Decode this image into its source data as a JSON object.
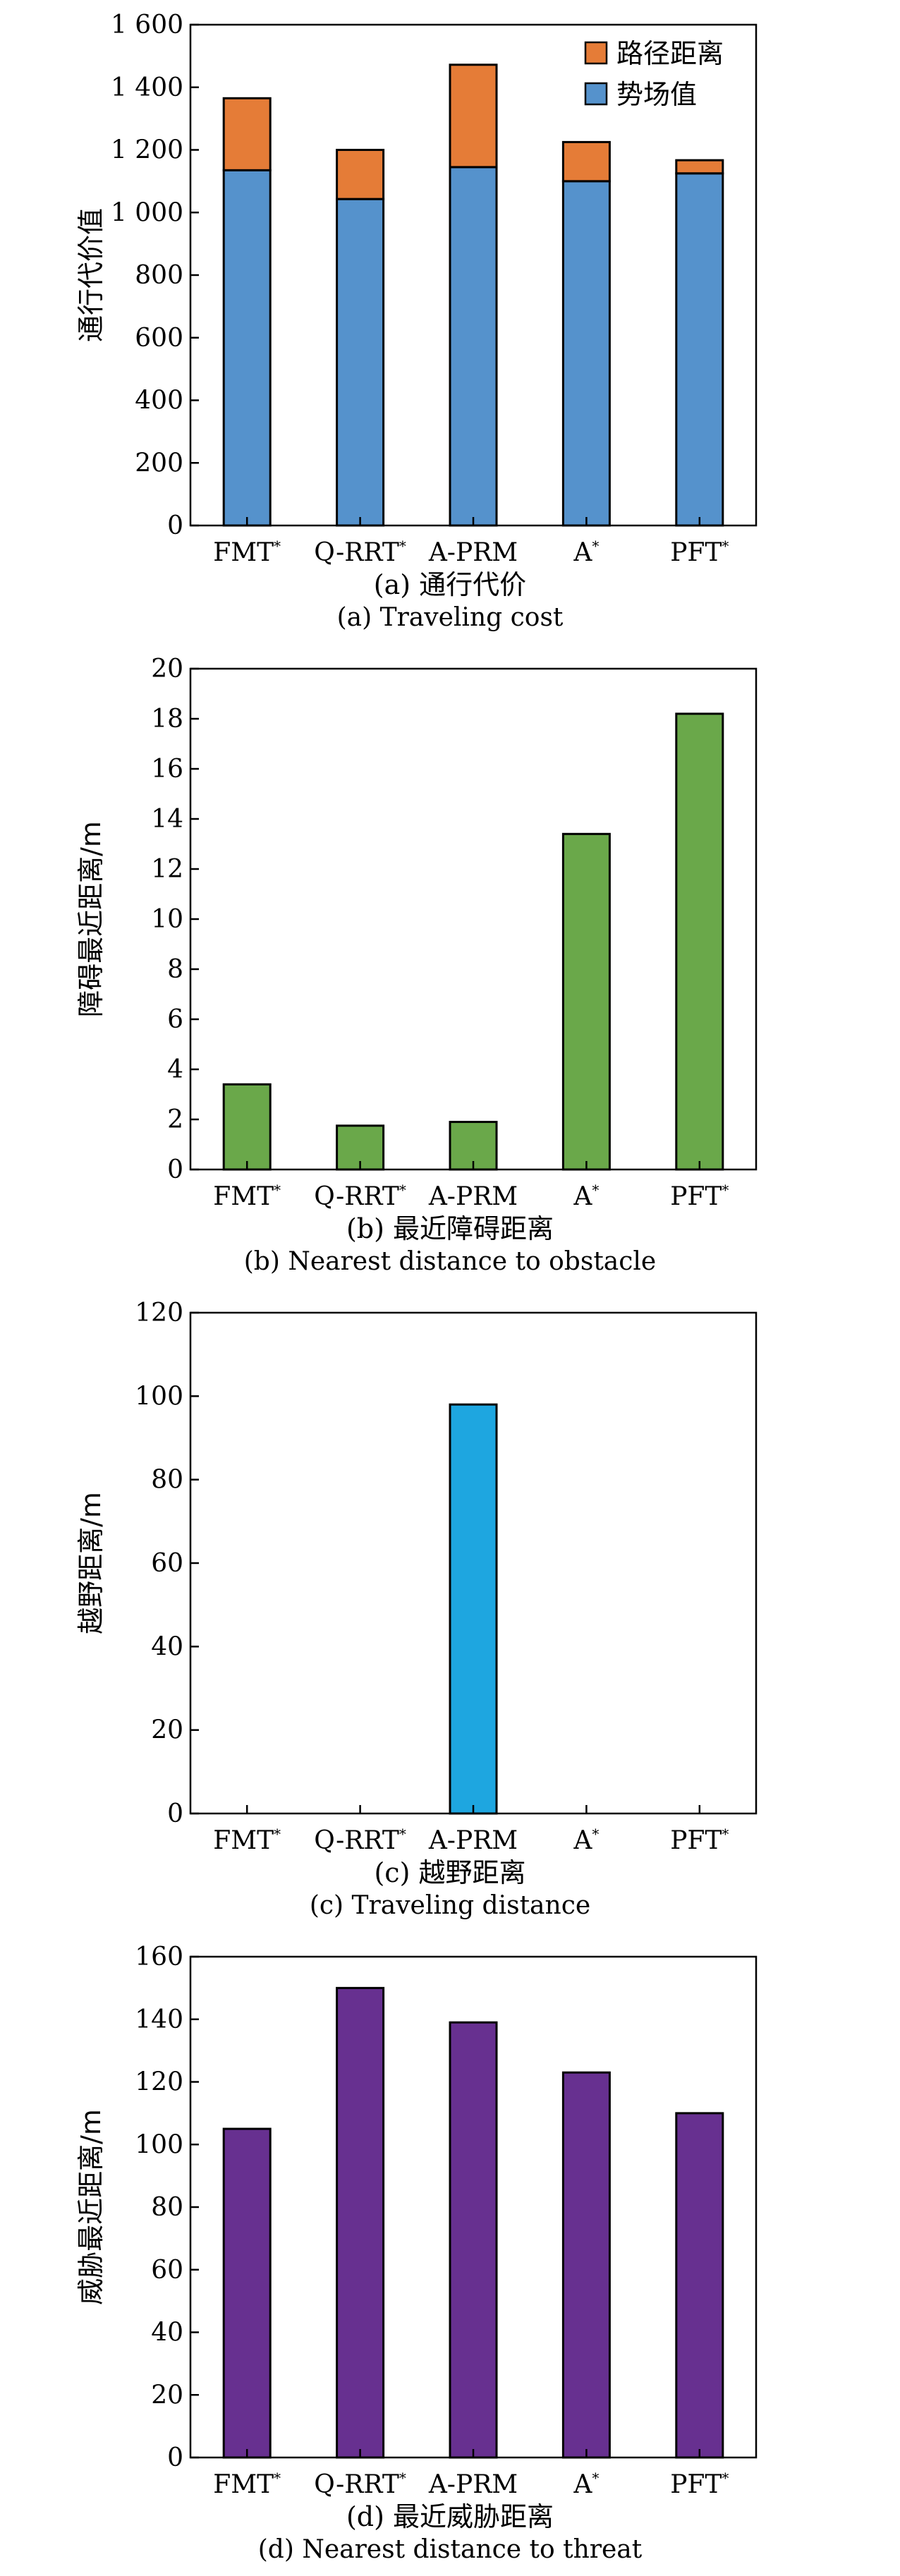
{
  "chart_data": [
    {
      "type": "bar",
      "stacked": true,
      "categories": [
        "FMT*",
        "Q-RRT*",
        "A-PRM",
        "A*",
        "PFT*"
      ],
      "series": [
        {
          "name": "势场值",
          "color": "#5592cc",
          "values": [
            1135,
            1043,
            1145,
            1100,
            1125
          ]
        },
        {
          "name": "路径距离",
          "color": "#e57c37",
          "values": [
            230,
            157,
            327,
            125,
            42
          ]
        }
      ],
      "ylabel": "通行代价值",
      "ylim": [
        0,
        1600
      ],
      "yticks": [
        0,
        200,
        400,
        600,
        800,
        1000,
        1200,
        1400,
        1600
      ],
      "ytick_labels": [
        "0",
        "200",
        "400",
        "600",
        "800",
        "1 000",
        "1 200",
        "1 400",
        "1 600"
      ],
      "legend": "top-right",
      "grid": false,
      "caption_cn": "(a) 通行代价",
      "caption_en": "(a) Traveling cost"
    },
    {
      "type": "bar",
      "categories": [
        "FMT*",
        "Q-RRT*",
        "A-PRM",
        "A*",
        "PFT*"
      ],
      "series": [
        {
          "color": "#6aa84a",
          "values": [
            3.4,
            1.75,
            1.9,
            13.4,
            18.2
          ]
        }
      ],
      "ylabel": "障碍最近距离/m",
      "ylim": [
        0,
        20
      ],
      "yticks": [
        0,
        2,
        4,
        6,
        8,
        10,
        12,
        14,
        16,
        18,
        20
      ],
      "ytick_labels": [
        "0",
        "2",
        "4",
        "6",
        "8",
        "10",
        "12",
        "14",
        "16",
        "18",
        "20"
      ],
      "grid": false,
      "caption_cn": "(b) 最近障碍距离",
      "caption_en": "(b) Nearest distance to obstacle"
    },
    {
      "type": "bar",
      "categories": [
        "FMT*",
        "Q-RRT*",
        "A-PRM",
        "A*",
        "PFT*"
      ],
      "series": [
        {
          "color": "#1ea6e0",
          "values": [
            0,
            0,
            98,
            0,
            0
          ]
        }
      ],
      "ylabel": "越野距离/m",
      "ylim": [
        0,
        120
      ],
      "yticks": [
        0,
        20,
        40,
        60,
        80,
        100,
        120
      ],
      "ytick_labels": [
        "0",
        "20",
        "40",
        "60",
        "80",
        "100",
        "120"
      ],
      "grid": false,
      "caption_cn": "(c) 越野距离",
      "caption_en": "(c) Traveling distance"
    },
    {
      "type": "bar",
      "categories": [
        "FMT*",
        "Q-RRT*",
        "A-PRM",
        "A*",
        "PFT*"
      ],
      "series": [
        {
          "color": "#673090",
          "values": [
            105,
            150,
            139,
            123,
            110
          ]
        }
      ],
      "ylabel": "威胁最近距离/m",
      "ylim": [
        0,
        160
      ],
      "yticks": [
        0,
        20,
        40,
        60,
        80,
        100,
        120,
        140,
        160
      ],
      "ytick_labels": [
        "0",
        "20",
        "40",
        "60",
        "80",
        "100",
        "120",
        "140",
        "160"
      ],
      "grid": false,
      "caption_cn": "(d) 最近威胁距离",
      "caption_en": "(d) Nearest distance to threat"
    }
  ]
}
